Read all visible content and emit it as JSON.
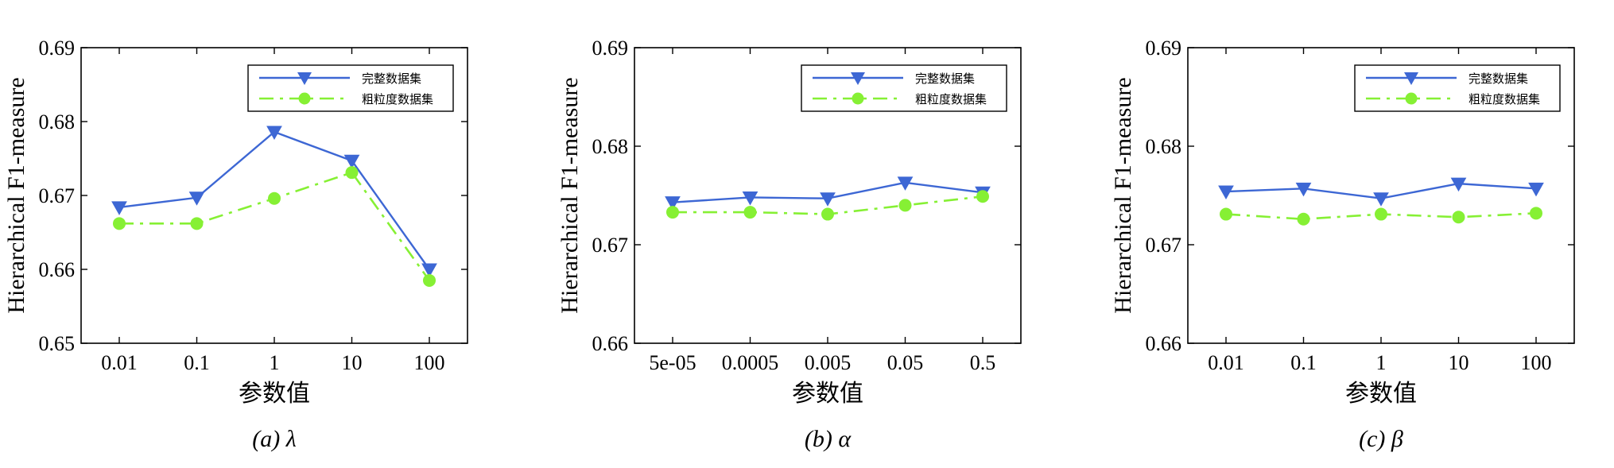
{
  "colors": {
    "full": "#3d67d4",
    "coarse": "#86f034",
    "axis": "#000000",
    "background": "#ffffff"
  },
  "legend_names": [
    "完整数据集",
    "粗粒度数据集"
  ],
  "chart_data": [
    {
      "type": "line",
      "caption": "(a) λ",
      "xlabel": "参数值",
      "ylabel": "Hierarchical F1-measure",
      "categories": [
        "0.01",
        "0.1",
        "1",
        "10",
        "100"
      ],
      "ylim": [
        0.65,
        0.69
      ],
      "yticks": [
        "0.65",
        "0.66",
        "0.67",
        "0.68",
        "0.69"
      ],
      "ytick_values": [
        0.65,
        0.66,
        0.67,
        0.68,
        0.69
      ],
      "legend": "top-right",
      "grid": false,
      "series": [
        {
          "name": "完整数据集",
          "values": [
            0.6684,
            0.6697,
            0.6786,
            0.6747,
            0.66
          ],
          "marker": "triangle-down",
          "line": "solid"
        },
        {
          "name": "粗粒度数据集",
          "values": [
            0.6662,
            0.6662,
            0.6696,
            0.6731,
            0.6585
          ],
          "marker": "circle",
          "line": "dashdot"
        }
      ]
    },
    {
      "type": "line",
      "caption": "(b) α",
      "xlabel": "参数值",
      "ylabel": "Hierarchical F1-measure",
      "categories": [
        "5e-05",
        "0.0005",
        "0.005",
        "0.05",
        "0.5"
      ],
      "ylim": [
        0.66,
        0.69
      ],
      "yticks": [
        "0.66",
        "0.67",
        "0.68",
        "0.69"
      ],
      "ytick_values": [
        0.66,
        0.67,
        0.68,
        0.69
      ],
      "legend": "top-right",
      "grid": false,
      "series": [
        {
          "name": "完整数据集",
          "values": [
            0.6743,
            0.6748,
            0.6747,
            0.6763,
            0.6753
          ],
          "marker": "triangle-down",
          "line": "solid"
        },
        {
          "name": "粗粒度数据集",
          "values": [
            0.6733,
            0.6733,
            0.6731,
            0.674,
            0.6749
          ],
          "marker": "circle",
          "line": "dashdot"
        }
      ]
    },
    {
      "type": "line",
      "caption": "(c) β",
      "xlabel": "参数值",
      "ylabel": "Hierarchical F1-measure",
      "categories": [
        "0.01",
        "0.1",
        "1",
        "10",
        "100"
      ],
      "ylim": [
        0.66,
        0.69
      ],
      "yticks": [
        "0.66",
        "0.67",
        "0.68",
        "0.69"
      ],
      "ytick_values": [
        0.66,
        0.67,
        0.68,
        0.69
      ],
      "legend": "top-right",
      "grid": false,
      "series": [
        {
          "name": "完整数据集",
          "values": [
            0.6754,
            0.6757,
            0.6747,
            0.6762,
            0.6757
          ],
          "marker": "triangle-down",
          "line": "solid"
        },
        {
          "name": "粗粒度数据集",
          "values": [
            0.6731,
            0.6726,
            0.6731,
            0.6728,
            0.6732
          ],
          "marker": "circle",
          "line": "dashdot"
        }
      ]
    }
  ]
}
